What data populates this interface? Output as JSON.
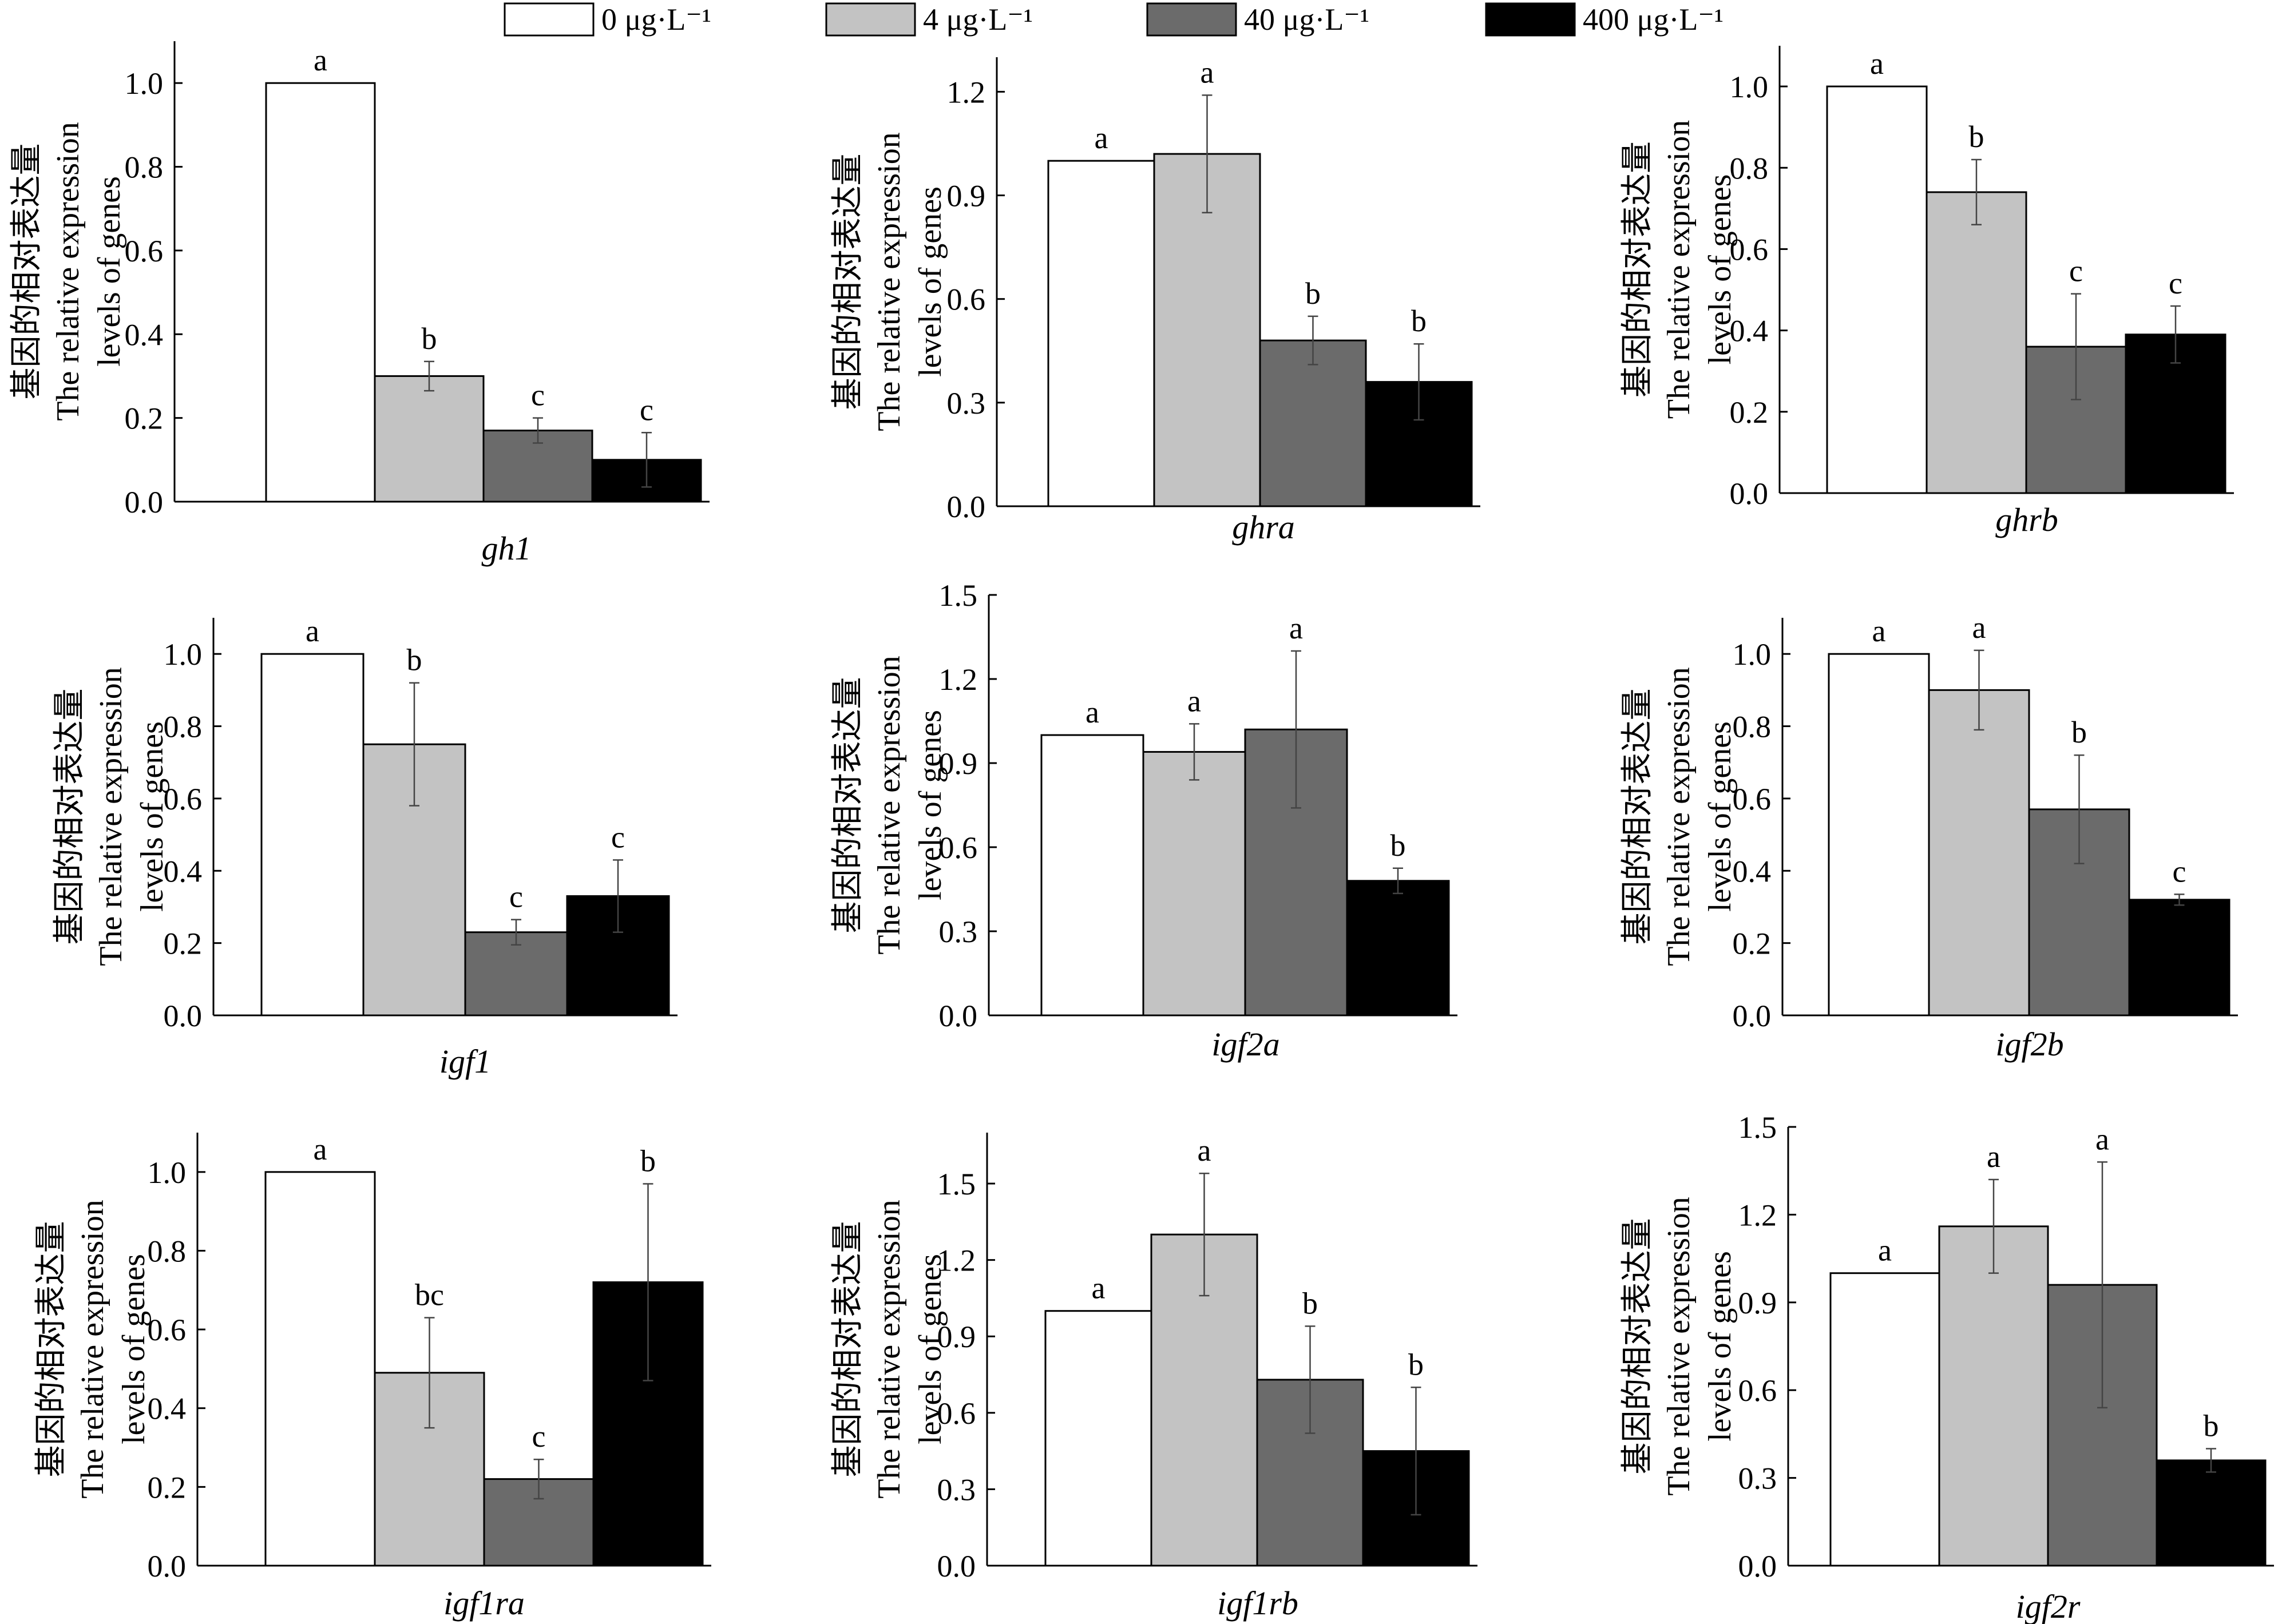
{
  "legend": {
    "items": [
      {
        "label": "0 μg·L⁻¹",
        "color": "#ffffff"
      },
      {
        "label": "4 μg·L⁻¹",
        "color": "#c3c3c3"
      },
      {
        "label": "40 μg·L⁻¹",
        "color": "#6b6b6b"
      },
      {
        "label": "400 μg·L⁻¹",
        "color": "#000000"
      }
    ]
  },
  "ylabel_lines": [
    "基因的相对表达量",
    "The relative expression",
    "levels of genes"
  ],
  "chart_data": [
    {
      "type": "bar",
      "gene": "gh1",
      "categories": [
        "0 μg·L⁻¹",
        "4 μg·L⁻¹",
        "40 μg·L⁻¹",
        "400 μg·L⁻¹"
      ],
      "values": [
        1.0,
        0.3,
        0.17,
        0.1
      ],
      "errors": [
        0,
        0.035,
        0.03,
        0.065
      ],
      "letters": [
        "a",
        "b",
        "c",
        "c"
      ],
      "ylim": [
        0,
        1.1
      ],
      "yticks": [
        0.0,
        0.2,
        0.4,
        0.6,
        0.8,
        1.0
      ],
      "tick_labels": [
        "0.0",
        "0.2",
        "0.4",
        "0.6",
        "0.8",
        "1.0"
      ]
    },
    {
      "type": "bar",
      "gene": "ghra",
      "categories": [
        "0 μg·L⁻¹",
        "4 μg·L⁻¹",
        "40 μg·L⁻¹",
        "400 μg·L⁻¹"
      ],
      "values": [
        1.0,
        1.02,
        0.48,
        0.36
      ],
      "errors": [
        0,
        0.17,
        0.07,
        0.11
      ],
      "letters": [
        "a",
        "a",
        "b",
        "b"
      ],
      "ylim": [
        0,
        1.3
      ],
      "yticks": [
        0.0,
        0.3,
        0.6,
        0.9,
        1.2
      ],
      "tick_labels": [
        "0.0",
        "0.3",
        "0.6",
        "0.9",
        "1.2"
      ]
    },
    {
      "type": "bar",
      "gene": "ghrb",
      "categories": [
        "0 μg·L⁻¹",
        "4 μg·L⁻¹",
        "40 μg·L⁻¹",
        "400 μg·L⁻¹"
      ],
      "values": [
        1.0,
        0.74,
        0.36,
        0.39
      ],
      "errors": [
        0,
        0.08,
        0.13,
        0.07
      ],
      "letters": [
        "a",
        "b",
        "c",
        "c"
      ],
      "ylim": [
        0,
        1.1
      ],
      "yticks": [
        0.0,
        0.2,
        0.4,
        0.6,
        0.8,
        1.0
      ],
      "tick_labels": [
        "0.0",
        "0.2",
        "0.4",
        "0.6",
        "0.8",
        "1.0"
      ]
    },
    {
      "type": "bar",
      "gene": "igf1",
      "categories": [
        "0 μg·L⁻¹",
        "4 μg·L⁻¹",
        "40 μg·L⁻¹",
        "400 μg·L⁻¹"
      ],
      "values": [
        1.0,
        0.75,
        0.23,
        0.33
      ],
      "errors": [
        0,
        0.17,
        0.035,
        0.1
      ],
      "letters": [
        "a",
        "b",
        "c",
        "c"
      ],
      "ylim": [
        0,
        1.1
      ],
      "yticks": [
        0.0,
        0.2,
        0.4,
        0.6,
        0.8,
        1.0
      ],
      "tick_labels": [
        "0.0",
        "0.2",
        "0.4",
        "0.6",
        "0.8",
        "1.0"
      ]
    },
    {
      "type": "bar",
      "gene": "igf2a",
      "categories": [
        "0 μg·L⁻¹",
        "4 μg·L⁻¹",
        "40 μg·L⁻¹",
        "400 μg·L⁻¹"
      ],
      "values": [
        1.0,
        0.94,
        1.02,
        0.48
      ],
      "errors": [
        0,
        0.1,
        0.28,
        0.045
      ],
      "letters": [
        "a",
        "a",
        "a",
        "b"
      ],
      "ylim": [
        0,
        1.5
      ],
      "yticks": [
        0.0,
        0.3,
        0.6,
        0.9,
        1.2,
        1.5
      ],
      "tick_labels": [
        "0.0",
        "0.3",
        "0.6",
        "0.9",
        "1.2",
        "1.5"
      ]
    },
    {
      "type": "bar",
      "gene": "igf2b",
      "categories": [
        "0 μg·L⁻¹",
        "4 μg·L⁻¹",
        "40 μg·L⁻¹",
        "400 μg·L⁻¹"
      ],
      "values": [
        1.0,
        0.9,
        0.57,
        0.32
      ],
      "errors": [
        0,
        0.11,
        0.15,
        0.015
      ],
      "letters": [
        "a",
        "a",
        "b",
        "c"
      ],
      "ylim": [
        0,
        1.1
      ],
      "yticks": [
        0.0,
        0.2,
        0.4,
        0.6,
        0.8,
        1.0
      ],
      "tick_labels": [
        "0.0",
        "0.2",
        "0.4",
        "0.6",
        "0.8",
        "1.0"
      ]
    },
    {
      "type": "bar",
      "gene": "igf1ra",
      "categories": [
        "0 μg·L⁻¹",
        "4 μg·L⁻¹",
        "40 μg·L⁻¹",
        "400 μg·L⁻¹"
      ],
      "values": [
        1.0,
        0.49,
        0.22,
        0.72
      ],
      "errors": [
        0,
        0.14,
        0.05,
        0.25
      ],
      "letters": [
        "a",
        "bc",
        "c",
        "b"
      ],
      "ylim": [
        0,
        1.1
      ],
      "yticks": [
        0.0,
        0.2,
        0.4,
        0.6,
        0.8,
        1.0
      ],
      "tick_labels": [
        "0.0",
        "0.2",
        "0.4",
        "0.6",
        "0.8",
        "1.0"
      ]
    },
    {
      "type": "bar",
      "gene": "igf1rb",
      "categories": [
        "0 μg·L⁻¹",
        "4 μg·L⁻¹",
        "40 μg·L⁻¹",
        "400 μg·L⁻¹"
      ],
      "values": [
        1.0,
        1.3,
        0.73,
        0.45
      ],
      "errors": [
        0,
        0.24,
        0.21,
        0.25
      ],
      "letters": [
        "a",
        "a",
        "b",
        "b"
      ],
      "ylim": [
        0,
        1.7
      ],
      "yticks": [
        0.0,
        0.3,
        0.6,
        0.9,
        1.2,
        1.5
      ],
      "tick_labels": [
        "0.0",
        "0.3",
        "0.6",
        "0.9",
        "1.2",
        "1.5"
      ]
    },
    {
      "type": "bar",
      "gene": "igf2r",
      "categories": [
        "0 μg·L⁻¹",
        "4 μg·L⁻¹",
        "40 μg·L⁻¹",
        "400 μg·L⁻¹"
      ],
      "values": [
        1.0,
        1.16,
        0.96,
        0.36
      ],
      "errors": [
        0,
        0.16,
        0.42,
        0.04
      ],
      "letters": [
        "a",
        "a",
        "a",
        "b"
      ],
      "ylim": [
        0,
        1.5
      ],
      "yticks": [
        0.0,
        0.3,
        0.6,
        0.9,
        1.2,
        1.5
      ],
      "tick_labels": [
        "0.0",
        "0.3",
        "0.6",
        "0.9",
        "1.2",
        "1.5"
      ]
    }
  ]
}
